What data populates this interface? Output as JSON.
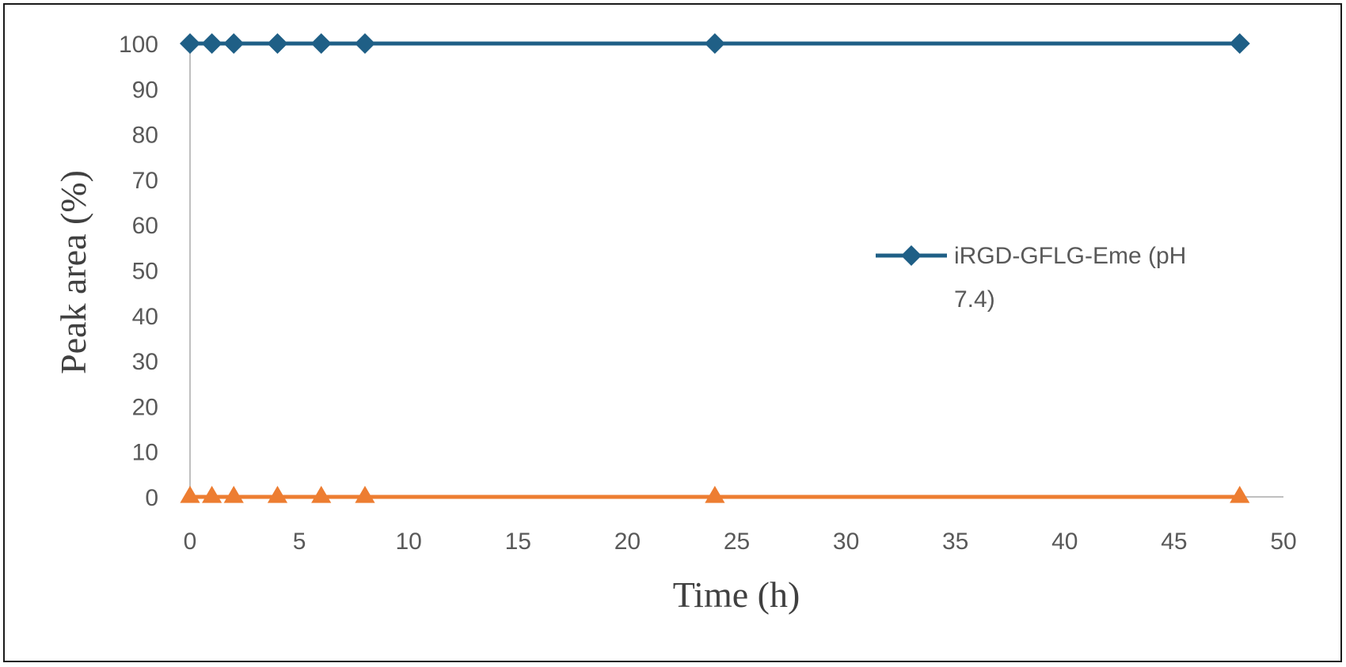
{
  "chart_data": {
    "type": "line",
    "xlabel": "Time (h)",
    "ylabel": "Peak area (%)",
    "xlim": [
      0,
      50
    ],
    "ylim": [
      0,
      100
    ],
    "x_ticks": [
      0,
      5,
      10,
      15,
      20,
      25,
      30,
      35,
      40,
      45,
      50
    ],
    "y_ticks": [
      0,
      10,
      20,
      30,
      40,
      50,
      60,
      70,
      80,
      90,
      100
    ],
    "grid": false,
    "legend_position": "right",
    "series": [
      {
        "name": "iRGD-GFLG-Eme (pH 7.4)",
        "legend_lines": [
          "iRGD-GFLG-Eme (pH",
          "7.4)"
        ],
        "color": "#1f5f86",
        "marker": "diamond",
        "x": [
          0,
          1,
          2,
          4,
          6,
          8,
          24,
          48
        ],
        "y": [
          100,
          100,
          100,
          100,
          100,
          100,
          100,
          100
        ]
      },
      {
        "color": "#ed7d31",
        "marker": "triangle",
        "x": [
          0,
          1,
          2,
          4,
          6,
          8,
          24,
          48
        ],
        "y": [
          0,
          0,
          0,
          0,
          0,
          0,
          0,
          0
        ]
      }
    ]
  }
}
